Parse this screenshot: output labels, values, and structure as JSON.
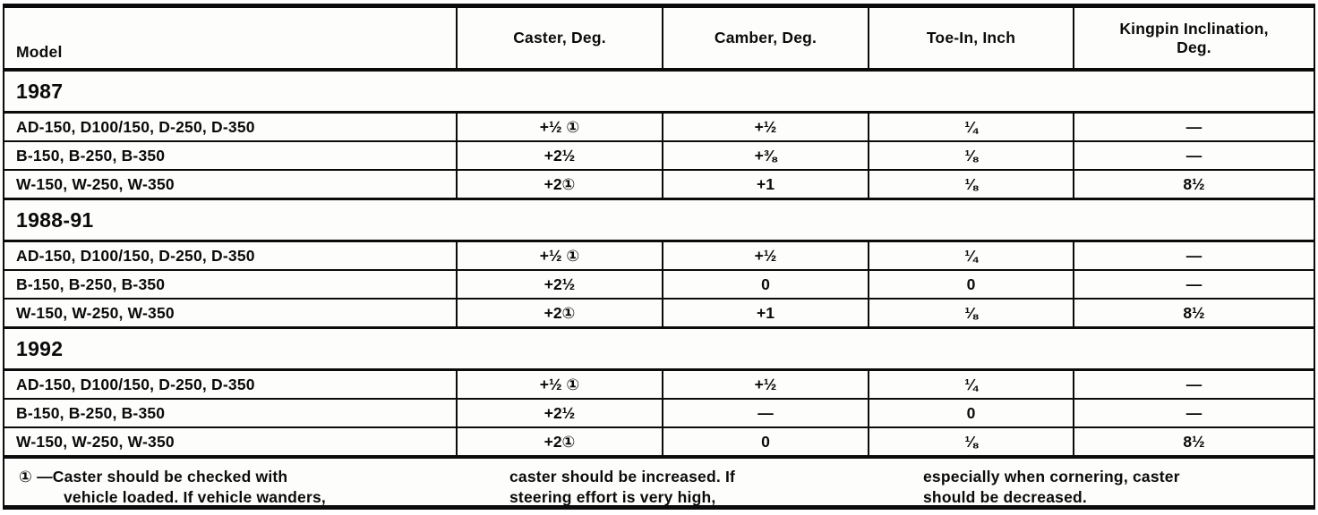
{
  "table": {
    "columns": [
      "Model",
      "Caster, Deg.",
      "Camber, Deg.",
      "Toe-In, Inch",
      "Kingpin Inclination,\nDeg."
    ],
    "sections": [
      {
        "year": "1987",
        "rows": [
          {
            "model": "AD-150, D100/150, D-250, D-350",
            "caster": "+½ ①",
            "camber": "+½",
            "toe_in": "¼",
            "kingpin": "—"
          },
          {
            "model": "B-150, B-250, B-350",
            "caster": "+2½",
            "camber": "+⅜",
            "toe_in": "⅛",
            "kingpin": "—"
          },
          {
            "model": "W-150, W-250, W-350",
            "caster": "+2①",
            "camber": "+1",
            "toe_in": "⅛",
            "kingpin": "8½"
          }
        ]
      },
      {
        "year": "1988-91",
        "rows": [
          {
            "model": "AD-150, D100/150, D-250, D-350",
            "caster": "+½ ①",
            "camber": "+½",
            "toe_in": "¼",
            "kingpin": "—"
          },
          {
            "model": "B-150, B-250, B-350",
            "caster": "+2½",
            "camber": "0",
            "toe_in": "0",
            "kingpin": "—"
          },
          {
            "model": "W-150, W-250, W-350",
            "caster": "+2①",
            "camber": "+1",
            "toe_in": "⅛",
            "kingpin": "8½"
          }
        ]
      },
      {
        "year": "1992",
        "rows": [
          {
            "model": "AD-150, D100/150, D-250, D-350",
            "caster": "+½ ①",
            "camber": "+½",
            "toe_in": "¼",
            "kingpin": "—"
          },
          {
            "model": "B-150, B-250, B-350",
            "caster": "+2½",
            "camber": "—",
            "toe_in": "0",
            "kingpin": "—"
          },
          {
            "model": "W-150, W-250, W-350",
            "caster": "+2①",
            "camber": "0",
            "toe_in": "⅛",
            "kingpin": "8½"
          }
        ]
      }
    ],
    "footnote": {
      "col1": "① —Caster should be checked with\nvehicle loaded. If vehicle wanders,",
      "col2": "caster should be increased. If\nsteering effort is very high,",
      "col3": "especially when cornering, caster\nshould be decreased."
    }
  }
}
